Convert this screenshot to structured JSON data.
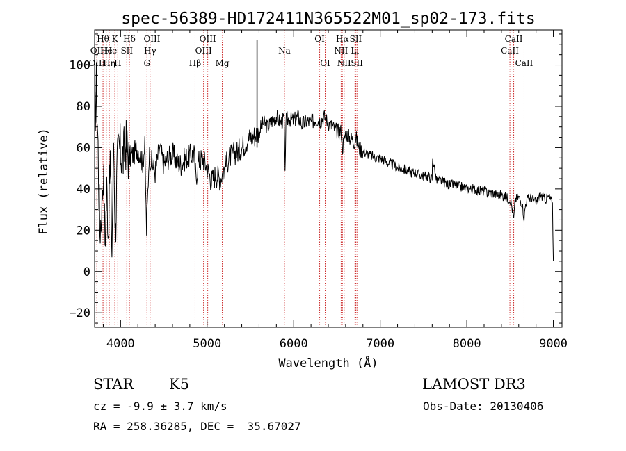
{
  "chart_data": {
    "type": "line",
    "title": "spec-56389-HD172411N365522M01_sp02-173.fits",
    "xlabel": "Wavelength (Å)",
    "ylabel": "Flux (relative)",
    "xlim": [
      3700,
      9100
    ],
    "ylim": [
      -27,
      117
    ],
    "xticks": [
      4000,
      5000,
      6000,
      7000,
      8000,
      9000
    ],
    "yticks": [
      -20,
      0,
      20,
      40,
      60,
      80,
      100
    ],
    "series": [
      {
        "name": "flux",
        "x": [
          3700,
          3720,
          3740,
          3760,
          3780,
          3800,
          3820,
          3840,
          3860,
          3880,
          3900,
          3920,
          3940,
          3960,
          3980,
          4000,
          4030,
          4060,
          4100,
          4150,
          4200,
          4250,
          4280,
          4300,
          4330,
          4360,
          4400,
          4450,
          4500,
          4550,
          4600,
          4650,
          4700,
          4750,
          4800,
          4850,
          4870,
          4900,
          4950,
          5000,
          5050,
          5100,
          5150,
          5200,
          5250,
          5300,
          5350,
          5400,
          5450,
          5500,
          5550,
          5600,
          5650,
          5700,
          5750,
          5800,
          5850,
          5890,
          5900,
          5910,
          5950,
          6000,
          6050,
          6100,
          6150,
          6200,
          6250,
          6300,
          6350,
          6400,
          6450,
          6500,
          6550,
          6563,
          6600,
          6650,
          6700,
          6720,
          6750,
          6800,
          6850,
          6900,
          6950,
          7000,
          7050,
          7100,
          7150,
          7200,
          7250,
          7300,
          7350,
          7400,
          7450,
          7500,
          7550,
          7600,
          7605,
          7650,
          7700,
          7750,
          7800,
          7850,
          7900,
          7950,
          8000,
          8050,
          8100,
          8150,
          8200,
          8250,
          8300,
          8350,
          8400,
          8450,
          8500,
          8520,
          8542,
          8560,
          8600,
          8640,
          8662,
          8680,
          8700,
          8750,
          8800,
          8850,
          8900,
          8950,
          8990,
          9000
        ],
        "y": [
          70,
          90,
          60,
          20,
          30,
          50,
          15,
          40,
          20,
          55,
          10,
          65,
          18,
          50,
          60,
          58,
          55,
          62,
          55,
          57,
          60,
          52,
          60,
          20,
          57,
          53,
          48,
          60,
          52,
          55,
          57,
          53,
          52,
          55,
          56,
          57,
          45,
          53,
          55,
          50,
          44,
          47,
          45,
          50,
          55,
          57,
          58,
          60,
          63,
          65,
          66,
          68,
          72,
          70,
          73,
          75,
          72,
          74,
          45,
          73,
          74,
          73,
          75,
          71,
          73,
          72,
          74,
          73,
          75,
          72,
          70,
          68,
          68,
          60,
          67,
          65,
          63,
          65,
          60,
          58,
          57,
          56,
          55,
          55,
          54,
          52,
          52,
          50,
          50,
          49,
          48,
          48,
          47,
          46,
          46,
          45,
          55,
          44,
          44,
          43,
          42,
          42,
          41,
          41,
          40,
          40,
          40,
          39,
          39,
          38,
          38,
          37,
          37,
          36,
          35,
          32,
          25,
          35,
          36,
          33,
          26,
          33,
          35,
          36,
          33,
          37,
          35,
          36,
          33,
          5
        ]
      }
    ],
    "spikes": [
      {
        "x": 5577,
        "y": 112
      }
    ],
    "line_markers": [
      {
        "name": "Hθ",
        "x": 3797,
        "row": 1
      },
      {
        "name": "OII",
        "x": 3727,
        "row": 2
      },
      {
        "name": "OIII",
        "x": 3727,
        "row": 3
      },
      {
        "name": "He",
        "x": 3835,
        "row": 2
      },
      {
        "name": "K",
        "x": 3934,
        "row": 1
      },
      {
        "name": "He",
        "x": 3889,
        "row": 2
      },
      {
        "name": "Hη",
        "x": 3869,
        "row": 3
      },
      {
        "name": "Hδ",
        "x": 4102,
        "row": 1
      },
      {
        "name": "SII",
        "x": 4072,
        "row": 2
      },
      {
        "name": "H",
        "x": 3968,
        "row": 3
      },
      {
        "name": "OIII",
        "x": 4363,
        "row": 1
      },
      {
        "name": "Hγ",
        "x": 4341,
        "row": 2
      },
      {
        "name": "G",
        "x": 4305,
        "row": 3
      },
      {
        "name": "OIII",
        "x": 5007,
        "row": 1
      },
      {
        "name": "OIII",
        "x": 4959,
        "row": 2
      },
      {
        "name": "Hβ",
        "x": 4861,
        "row": 3
      },
      {
        "name": "Mg",
        "x": 5175,
        "row": 3
      },
      {
        "name": "Na",
        "x": 5893,
        "row": 2
      },
      {
        "name": "OI",
        "x": 6300,
        "row": 1
      },
      {
        "name": "OI",
        "x": 6364,
        "row": 3
      },
      {
        "name": "Hα",
        "x": 6563,
        "row": 1
      },
      {
        "name": "SII",
        "x": 6717,
        "row": 1
      },
      {
        "name": "NII",
        "x": 6548,
        "row": 2
      },
      {
        "name": "Li",
        "x": 6708,
        "row": 2
      },
      {
        "name": "NII",
        "x": 6583,
        "row": 3
      },
      {
        "name": "SII",
        "x": 6731,
        "row": 3
      },
      {
        "name": "CaII",
        "x": 8542,
        "row": 1
      },
      {
        "name": "CaII",
        "x": 8498,
        "row": 2
      },
      {
        "name": "CaII",
        "x": 8662,
        "row": 3
      }
    ]
  },
  "info": {
    "object_class": "STAR",
    "subclass": "K5",
    "survey": "LAMOST DR3",
    "velocity": "cz = -9.9 ± 3.7 km/s",
    "obs_date": "Obs-Date: 20130406",
    "coords": "RA = 258.36285, DEC =  35.67027"
  }
}
